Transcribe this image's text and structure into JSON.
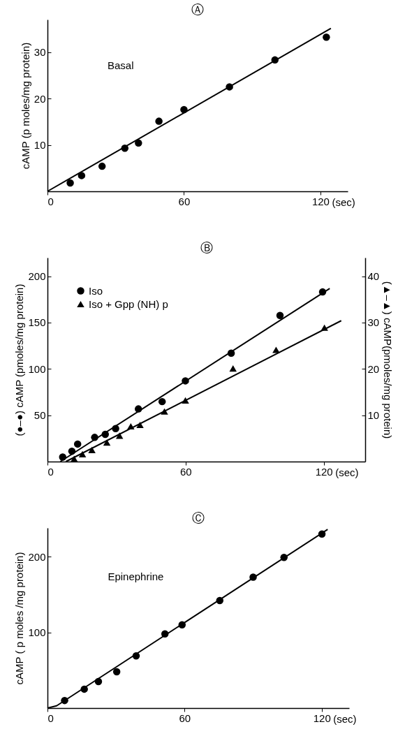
{
  "chart_data": [
    {
      "type": "scatter",
      "title": "Ⓐ",
      "xlabel": "(sec)",
      "ylabel": "cAMP (p moles/mg protein)",
      "xlim": [
        0,
        132
      ],
      "ylim": [
        0,
        37
      ],
      "xticks": [
        0,
        60,
        120
      ],
      "yticks": [
        10,
        20,
        30
      ],
      "annotations": [
        "Basal"
      ],
      "series": [
        {
          "marker": "circle",
          "color": "#000000",
          "x": [
            10,
            15,
            24,
            34,
            40,
            49,
            60,
            80,
            100,
            122.6
          ],
          "values": [
            1.8,
            3.4,
            5.4,
            9.3,
            10.4,
            15.1,
            17.6,
            22.5,
            28.3,
            33.2
          ]
        },
        {
          "type": "line",
          "color": "#000000",
          "x": [
            0,
            124.6
          ],
          "values": [
            0,
            35.1
          ]
        }
      ]
    },
    {
      "type": "scatter",
      "title": "Ⓑ",
      "xlabel": "(sec)",
      "ylabel": "(●–●) cAMP (pmoles/mg protein)",
      "y2label": "(▲–▲) cAMP(pmoles/mg protein)",
      "xlim": [
        0,
        138
      ],
      "ylim": [
        0,
        220
      ],
      "y2lim": [
        0,
        44
      ],
      "xticks": [
        0,
        60,
        120
      ],
      "yticks": [
        50,
        100,
        150,
        200
      ],
      "y2ticks": [
        10,
        20,
        30,
        40
      ],
      "legend": "top left",
      "series": [
        {
          "name": "Iso",
          "marker": "circle",
          "color": "#000000",
          "x": [
            6.6,
            10.6,
            13.1,
            20.5,
            25.1,
            29.6,
            39.5,
            49.8,
            59.9,
            79.8,
            101,
            119.5
          ],
          "values": [
            4.9,
            11.2,
            18.9,
            26.1,
            29.4,
            35.6,
            56.8,
            64.7,
            87.1,
            117,
            157.7,
            183
          ]
        },
        {
          "name": "Iso + Gpp (NH) p",
          "marker": "triangle",
          "axis": "y2",
          "color": "#000000",
          "x": [
            11.6,
            15.2,
            19.3,
            25.8,
            31.3,
            36.2,
            40.2,
            50.8,
            59.9,
            80.6,
            99.3,
            120.3
          ],
          "values": [
            0.6,
            1.6,
            2.5,
            4.1,
            5.6,
            7.6,
            7.9,
            10.8,
            13.2,
            20.1,
            24.1,
            28.9
          ]
        },
        {
          "type": "line",
          "color": "#000000",
          "x": [
            5.6,
            122.6
          ],
          "values": [
            0,
            186.8
          ]
        },
        {
          "type": "line",
          "axis": "y2",
          "color": "#000000",
          "x": [
            8,
            127.6
          ],
          "values": [
            0,
            30.4
          ]
        }
      ]
    },
    {
      "type": "scatter",
      "title": "Ⓒ",
      "xlabel": "(sec)",
      "ylabel": "cAMP ( p moles /mg protein)",
      "xlim": [
        0,
        132
      ],
      "ylim": [
        0,
        238
      ],
      "xticks": [
        0,
        60,
        120
      ],
      "yticks": [
        100,
        200
      ],
      "annotations": [
        "Epinephrine"
      ],
      "series": [
        {
          "marker": "circle",
          "color": "#000000",
          "x": [
            7.5,
            16.1,
            22.3,
            30.3,
            38.8,
            51.4,
            58.9,
            75.4,
            90,
            103.5,
            120.1
          ],
          "values": [
            10,
            25,
            35,
            48,
            69,
            98,
            110,
            142,
            173,
            199,
            230
          ]
        },
        {
          "type": "line",
          "color": "#000000",
          "x": [
            0,
            4,
            122.6
          ],
          "values": [
            0,
            3,
            236
          ]
        }
      ]
    }
  ]
}
